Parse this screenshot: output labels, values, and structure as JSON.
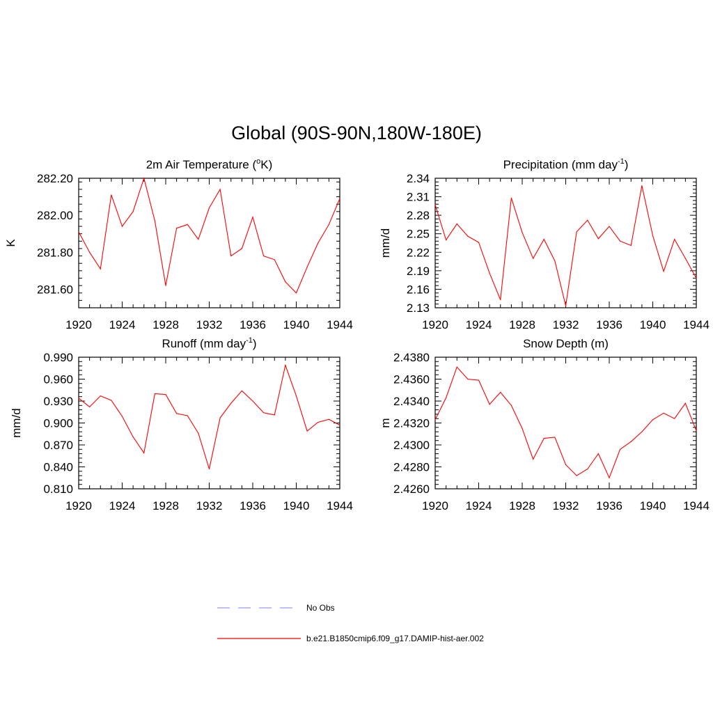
{
  "figure": {
    "title": "Global (90S-90N,180W-180E)"
  },
  "chart_data": [
    {
      "type": "line",
      "title": "2m Air Temperature (",
      "title_sup": "o",
      "title_suffix": "K)",
      "xlabel": "",
      "ylabel": "K",
      "xlim": [
        1920,
        1944
      ],
      "ylim": [
        281.5,
        282.2
      ],
      "xticks": [
        "1920",
        "1924",
        "1928",
        "1932",
        "1936",
        "1940",
        "1944"
      ],
      "yticks": [
        "281.60",
        "281.80",
        "282.00",
        "282.20"
      ],
      "ytick_values": [
        281.6,
        281.8,
        282.0,
        282.2
      ],
      "grid": false,
      "series": [
        {
          "color": "#ff0000",
          "x": [
            1920,
            1921,
            1922,
            1923,
            1924,
            1925,
            1926,
            1927,
            1928,
            1929,
            1930,
            1931,
            1932,
            1933,
            1934,
            1935,
            1936,
            1937,
            1938,
            1939,
            1940,
            1941,
            1942,
            1943,
            1944
          ],
          "values": [
            281.91,
            281.8,
            281.71,
            282.11,
            281.94,
            282.02,
            282.2,
            281.97,
            281.62,
            281.93,
            281.95,
            281.87,
            282.04,
            282.14,
            281.78,
            281.82,
            281.99,
            281.78,
            281.76,
            281.64,
            281.58,
            281.72,
            281.85,
            281.95,
            282.09
          ]
        }
      ]
    },
    {
      "type": "line",
      "title": "Precipitation (mm day",
      "title_sup": "-1",
      "title_suffix": ")",
      "xlabel": "",
      "ylabel": "mm/d",
      "xlim": [
        1920,
        1944
      ],
      "ylim": [
        2.13,
        2.34
      ],
      "xticks": [
        "1920",
        "1924",
        "1928",
        "1932",
        "1936",
        "1940",
        "1944"
      ],
      "yticks": [
        "2.13",
        "2.16",
        "2.19",
        "2.22",
        "2.25",
        "2.28",
        "2.31",
        "2.34"
      ],
      "ytick_values": [
        2.13,
        2.16,
        2.19,
        2.22,
        2.25,
        2.28,
        2.31,
        2.34
      ],
      "grid": false,
      "series": [
        {
          "color": "#ff0000",
          "x": [
            1920,
            1921,
            1922,
            1923,
            1924,
            1925,
            1926,
            1927,
            1928,
            1929,
            1930,
            1931,
            1932,
            1933,
            1934,
            1935,
            1936,
            1937,
            1938,
            1939,
            1940,
            1941,
            1942,
            1943,
            1944
          ],
          "values": [
            2.297,
            2.24,
            2.266,
            2.246,
            2.236,
            2.186,
            2.143,
            2.308,
            2.252,
            2.21,
            2.241,
            2.206,
            2.133,
            2.253,
            2.272,
            2.242,
            2.262,
            2.238,
            2.231,
            2.328,
            2.247,
            2.189,
            2.241,
            2.21,
            2.178
          ]
        }
      ]
    },
    {
      "type": "line",
      "title": "Runoff (mm day",
      "title_sup": "-1",
      "title_suffix": ")",
      "xlabel": "",
      "ylabel": "mm/d",
      "xlim": [
        1920,
        1944
      ],
      "ylim": [
        0.81,
        0.99
      ],
      "xticks": [
        "1920",
        "1924",
        "1928",
        "1932",
        "1936",
        "1940",
        "1944"
      ],
      "yticks": [
        "0.810",
        "0.840",
        "0.870",
        "0.900",
        "0.930",
        "0.960",
        "0.990"
      ],
      "ytick_values": [
        0.81,
        0.84,
        0.87,
        0.9,
        0.93,
        0.96,
        0.99
      ],
      "grid": false,
      "series": [
        {
          "color": "#ff0000",
          "x": [
            1920,
            1921,
            1922,
            1923,
            1924,
            1925,
            1926,
            1927,
            1928,
            1929,
            1930,
            1931,
            1932,
            1933,
            1934,
            1935,
            1936,
            1937,
            1938,
            1939,
            1940,
            1941,
            1942,
            1943,
            1944
          ],
          "values": [
            0.934,
            0.922,
            0.937,
            0.931,
            0.909,
            0.881,
            0.859,
            0.94,
            0.939,
            0.913,
            0.91,
            0.886,
            0.837,
            0.907,
            0.927,
            0.944,
            0.93,
            0.914,
            0.911,
            0.979,
            0.937,
            0.889,
            0.901,
            0.905,
            0.897
          ]
        }
      ]
    },
    {
      "type": "line",
      "title": "Snow Depth (m)",
      "title_sup": "",
      "title_suffix": "",
      "xlabel": "",
      "ylabel": "m",
      "xlim": [
        1920,
        1944
      ],
      "ylim": [
        2.426,
        2.438
      ],
      "xticks": [
        "1920",
        "1924",
        "1928",
        "1932",
        "1936",
        "1940",
        "1944"
      ],
      "yticks": [
        "2.4260",
        "2.4280",
        "2.4300",
        "2.4320",
        "2.4340",
        "2.4360",
        "2.4380"
      ],
      "ytick_values": [
        2.426,
        2.428,
        2.43,
        2.432,
        2.434,
        2.436,
        2.438
      ],
      "grid": false,
      "series": [
        {
          "color": "#ff0000",
          "x": [
            1920,
            1921,
            1922,
            1923,
            1924,
            1925,
            1926,
            1927,
            1928,
            1929,
            1930,
            1931,
            1932,
            1933,
            1934,
            1935,
            1936,
            1937,
            1938,
            1939,
            1940,
            1941,
            1942,
            1943,
            1944
          ],
          "values": [
            2.4323,
            2.4343,
            2.4371,
            2.436,
            2.4359,
            2.4337,
            2.4348,
            2.4336,
            2.4315,
            2.4287,
            2.4306,
            2.4307,
            2.4282,
            2.4272,
            2.4278,
            2.4292,
            2.427,
            2.4296,
            2.4303,
            2.4312,
            2.4323,
            2.4329,
            2.4324,
            2.4338,
            2.4313
          ]
        }
      ]
    }
  ],
  "legend": {
    "placement": "bottom-center",
    "entries": [
      {
        "label": "No Obs",
        "color": "#9999ff",
        "dashed": true
      },
      {
        "label": "b.e21.B1850cmip6.f09_g17.DAMIP-hist-aer.002",
        "color": "#ff0000",
        "dashed": false
      }
    ]
  }
}
